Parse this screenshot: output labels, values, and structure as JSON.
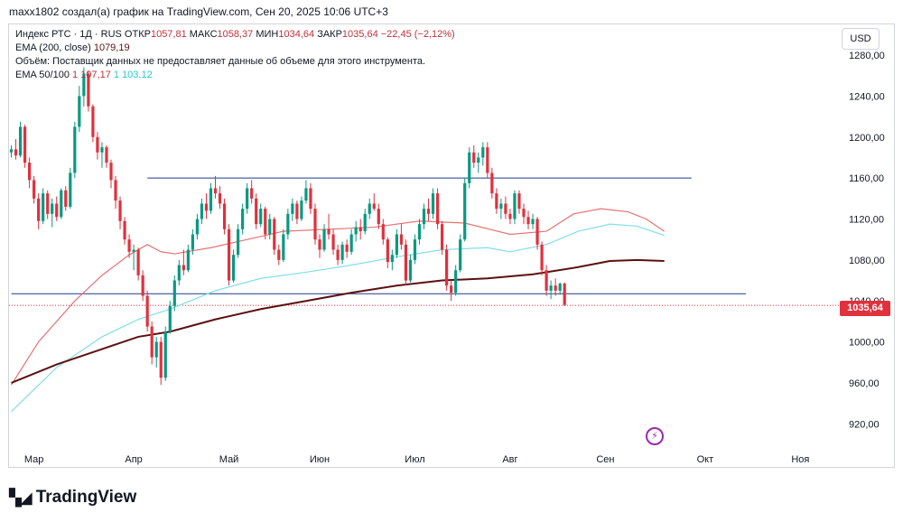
{
  "header": "maxx1802 создал(а) график на TradingView.com, Сен 20, 2025 10:06 UTC+3",
  "legend": {
    "symbol": "Индекс РТС · 1Д · RUS",
    "open_label": "ОТКР",
    "open": "1057,81",
    "high_label": "МАКС",
    "high": "1058,37",
    "low_label": "МИН",
    "low": "1034,64",
    "close_label": "ЗАКР",
    "close": "1035,64",
    "change": "−22,45 (−2,12%)",
    "ema200_label": "EMA (200, close)",
    "ema200_value": "1079,19",
    "volume_note": "Объём: Поставщик данных не предоставляет данные об объеме для этого инструмента.",
    "ema_pair_label": "EMA 50/100",
    "ema50_value": "1 107,17",
    "ema100_value": "1 103,12"
  },
  "currency": "USD",
  "last_price": "1035,64",
  "brand": "TradingView",
  "event_icon": "lightning-icon",
  "chart_data": {
    "type": "candlestick",
    "title": "Индекс РТС · 1Д",
    "ylim": [
      900,
      1310
    ],
    "y_ticks": [
      920,
      960,
      1000,
      1040,
      1080,
      1120,
      1160,
      1200,
      1240,
      1280
    ],
    "y_tick_labels": [
      "920,00",
      "960,00",
      "1000,00",
      "1040,00",
      "1080,00",
      "1120,00",
      "1160,00",
      "1200,00",
      "1240,00",
      "1280,00"
    ],
    "x_labels": [
      "Мар",
      "Апр",
      "Май",
      "Июн",
      "Июл",
      "Авг",
      "Сен",
      "Окт",
      "Ноя"
    ],
    "x_label_index": [
      5,
      27,
      48,
      68,
      89,
      110,
      131,
      153,
      174
    ],
    "n_slots": 182,
    "candles": [
      [
        1185,
        1192,
        1180,
        1188
      ],
      [
        1188,
        1198,
        1178,
        1182
      ],
      [
        1182,
        1215,
        1180,
        1210
      ],
      [
        1210,
        1212,
        1170,
        1175
      ],
      [
        1175,
        1180,
        1150,
        1158
      ],
      [
        1158,
        1162,
        1135,
        1140
      ],
      [
        1140,
        1145,
        1110,
        1118
      ],
      [
        1118,
        1150,
        1115,
        1145
      ],
      [
        1145,
        1148,
        1120,
        1125
      ],
      [
        1125,
        1140,
        1112,
        1135
      ],
      [
        1135,
        1142,
        1118,
        1122
      ],
      [
        1122,
        1150,
        1120,
        1148
      ],
      [
        1148,
        1152,
        1128,
        1132
      ],
      [
        1132,
        1170,
        1130,
        1165
      ],
      [
        1165,
        1215,
        1160,
        1210
      ],
      [
        1210,
        1250,
        1205,
        1240
      ],
      [
        1240,
        1268,
        1230,
        1262
      ],
      [
        1262,
        1265,
        1225,
        1230
      ],
      [
        1230,
        1232,
        1195,
        1200
      ],
      [
        1200,
        1205,
        1178,
        1185
      ],
      [
        1185,
        1195,
        1170,
        1190
      ],
      [
        1190,
        1192,
        1170,
        1175
      ],
      [
        1175,
        1178,
        1150,
        1158
      ],
      [
        1158,
        1162,
        1130,
        1138
      ],
      [
        1138,
        1142,
        1110,
        1118
      ],
      [
        1118,
        1122,
        1095,
        1100
      ],
      [
        1100,
        1105,
        1082,
        1088
      ],
      [
        1088,
        1095,
        1070,
        1090
      ],
      [
        1090,
        1092,
        1060,
        1065
      ],
      [
        1065,
        1070,
        1040,
        1045
      ],
      [
        1045,
        1050,
        1010,
        1015
      ],
      [
        1015,
        1020,
        978,
        985
      ],
      [
        985,
        1005,
        975,
        1000
      ],
      [
        1000,
        1005,
        958,
        965
      ],
      [
        965,
        1015,
        962,
        1010
      ],
      [
        1010,
        1040,
        1008,
        1035
      ],
      [
        1035,
        1065,
        1030,
        1060
      ],
      [
        1060,
        1080,
        1055,
        1075
      ],
      [
        1075,
        1090,
        1065,
        1070
      ],
      [
        1070,
        1095,
        1068,
        1090
      ],
      [
        1090,
        1110,
        1085,
        1105
      ],
      [
        1105,
        1125,
        1100,
        1120
      ],
      [
        1120,
        1140,
        1115,
        1135
      ],
      [
        1135,
        1145,
        1120,
        1128
      ],
      [
        1128,
        1155,
        1125,
        1150
      ],
      [
        1150,
        1162,
        1140,
        1145
      ],
      [
        1145,
        1152,
        1130,
        1135
      ],
      [
        1135,
        1140,
        1105,
        1110
      ],
      [
        1110,
        1115,
        1055,
        1060
      ],
      [
        1060,
        1090,
        1058,
        1085
      ],
      [
        1085,
        1115,
        1082,
        1110
      ],
      [
        1110,
        1135,
        1105,
        1130
      ],
      [
        1130,
        1155,
        1125,
        1150
      ],
      [
        1150,
        1158,
        1135,
        1140
      ],
      [
        1140,
        1145,
        1110,
        1115
      ],
      [
        1115,
        1135,
        1112,
        1130
      ],
      [
        1130,
        1132,
        1100,
        1105
      ],
      [
        1105,
        1125,
        1100,
        1120
      ],
      [
        1120,
        1122,
        1085,
        1090
      ],
      [
        1090,
        1095,
        1075,
        1080
      ],
      [
        1080,
        1110,
        1078,
        1105
      ],
      [
        1105,
        1130,
        1100,
        1125
      ],
      [
        1125,
        1140,
        1118,
        1135
      ],
      [
        1135,
        1138,
        1115,
        1120
      ],
      [
        1120,
        1142,
        1118,
        1138
      ],
      [
        1138,
        1158,
        1135,
        1150
      ],
      [
        1150,
        1155,
        1125,
        1130
      ],
      [
        1130,
        1135,
        1095,
        1100
      ],
      [
        1100,
        1105,
        1082,
        1090
      ],
      [
        1090,
        1115,
        1088,
        1110
      ],
      [
        1110,
        1125,
        1100,
        1105
      ],
      [
        1105,
        1110,
        1085,
        1090
      ],
      [
        1090,
        1095,
        1075,
        1080
      ],
      [
        1080,
        1098,
        1076,
        1095
      ],
      [
        1095,
        1100,
        1082,
        1088
      ],
      [
        1088,
        1110,
        1085,
        1105
      ],
      [
        1105,
        1118,
        1098,
        1112
      ],
      [
        1112,
        1120,
        1100,
        1108
      ],
      [
        1108,
        1130,
        1105,
        1125
      ],
      [
        1125,
        1140,
        1120,
        1135
      ],
      [
        1135,
        1145,
        1128,
        1130
      ],
      [
        1130,
        1135,
        1110,
        1115
      ],
      [
        1115,
        1120,
        1095,
        1100
      ],
      [
        1100,
        1102,
        1072,
        1078
      ],
      [
        1078,
        1090,
        1070,
        1085
      ],
      [
        1085,
        1110,
        1082,
        1105
      ],
      [
        1105,
        1115,
        1090,
        1095
      ],
      [
        1095,
        1100,
        1055,
        1060
      ],
      [
        1060,
        1085,
        1058,
        1080
      ],
      [
        1080,
        1105,
        1076,
        1100
      ],
      [
        1100,
        1120,
        1095,
        1115
      ],
      [
        1115,
        1135,
        1110,
        1130
      ],
      [
        1130,
        1140,
        1118,
        1125
      ],
      [
        1125,
        1150,
        1120,
        1145
      ],
      [
        1145,
        1150,
        1110,
        1115
      ],
      [
        1115,
        1118,
        1085,
        1090
      ],
      [
        1090,
        1095,
        1050,
        1055
      ],
      [
        1055,
        1060,
        1040,
        1048
      ],
      [
        1048,
        1075,
        1045,
        1070
      ],
      [
        1070,
        1105,
        1068,
        1100
      ],
      [
        1100,
        1160,
        1098,
        1155
      ],
      [
        1155,
        1190,
        1150,
        1185
      ],
      [
        1185,
        1192,
        1170,
        1175
      ],
      [
        1175,
        1185,
        1165,
        1180
      ],
      [
        1180,
        1195,
        1172,
        1190
      ],
      [
        1190,
        1195,
        1160,
        1165
      ],
      [
        1165,
        1170,
        1140,
        1145
      ],
      [
        1145,
        1150,
        1125,
        1130
      ],
      [
        1130,
        1140,
        1120,
        1135
      ],
      [
        1135,
        1142,
        1120,
        1125
      ],
      [
        1125,
        1130,
        1115,
        1120
      ],
      [
        1120,
        1148,
        1115,
        1145
      ],
      [
        1145,
        1148,
        1125,
        1130
      ],
      [
        1130,
        1135,
        1115,
        1122
      ],
      [
        1122,
        1128,
        1110,
        1115
      ],
      [
        1115,
        1125,
        1110,
        1120
      ],
      [
        1120,
        1122,
        1090,
        1095
      ],
      [
        1095,
        1098,
        1065,
        1070
      ],
      [
        1070,
        1075,
        1045,
        1050
      ],
      [
        1050,
        1060,
        1042,
        1055
      ],
      [
        1055,
        1062,
        1045,
        1050
      ],
      [
        1050,
        1058,
        1046,
        1057
      ],
      [
        1057,
        1058,
        1035,
        1036
      ]
    ],
    "overlays": [
      {
        "name": "EMA 50",
        "color": "#e57373",
        "points": [
          [
            0,
            958
          ],
          [
            6,
            1000
          ],
          [
            14,
            1040
          ],
          [
            20,
            1065
          ],
          [
            26,
            1085
          ],
          [
            30,
            1095
          ],
          [
            33,
            1088
          ],
          [
            36,
            1086
          ],
          [
            44,
            1092
          ],
          [
            52,
            1100
          ],
          [
            60,
            1108
          ],
          [
            70,
            1110
          ],
          [
            80,
            1112
          ],
          [
            90,
            1118
          ],
          [
            100,
            1116
          ],
          [
            110,
            1105
          ],
          [
            118,
            1108
          ],
          [
            124,
            1125
          ],
          [
            130,
            1130
          ],
          [
            136,
            1127
          ],
          [
            140,
            1120
          ],
          [
            144,
            1108
          ]
        ]
      },
      {
        "name": "EMA 100",
        "color": "#80deea",
        "points": [
          [
            0,
            932
          ],
          [
            10,
            975
          ],
          [
            20,
            1005
          ],
          [
            28,
            1022
          ],
          [
            35,
            1032
          ],
          [
            45,
            1050
          ],
          [
            55,
            1062
          ],
          [
            65,
            1068
          ],
          [
            75,
            1075
          ],
          [
            85,
            1083
          ],
          [
            95,
            1090
          ],
          [
            105,
            1092
          ],
          [
            110,
            1088
          ],
          [
            118,
            1095
          ],
          [
            125,
            1108
          ],
          [
            132,
            1115
          ],
          [
            138,
            1113
          ],
          [
            144,
            1104
          ]
        ]
      },
      {
        "name": "EMA 200",
        "color": "#5d1010",
        "points": [
          [
            0,
            960
          ],
          [
            10,
            978
          ],
          [
            20,
            993
          ],
          [
            28,
            1005
          ],
          [
            35,
            1010
          ],
          [
            45,
            1022
          ],
          [
            55,
            1032
          ],
          [
            65,
            1040
          ],
          [
            75,
            1048
          ],
          [
            85,
            1055
          ],
          [
            95,
            1060
          ],
          [
            105,
            1062
          ],
          [
            115,
            1066
          ],
          [
            125,
            1073
          ],
          [
            132,
            1079
          ],
          [
            138,
            1080
          ],
          [
            144,
            1079
          ]
        ]
      }
    ],
    "levels": [
      {
        "price": 1160,
        "from": 30,
        "to": 150
      },
      {
        "price": 1047,
        "from": 0,
        "to": 162
      }
    ],
    "last_price_line": 1035.64
  }
}
